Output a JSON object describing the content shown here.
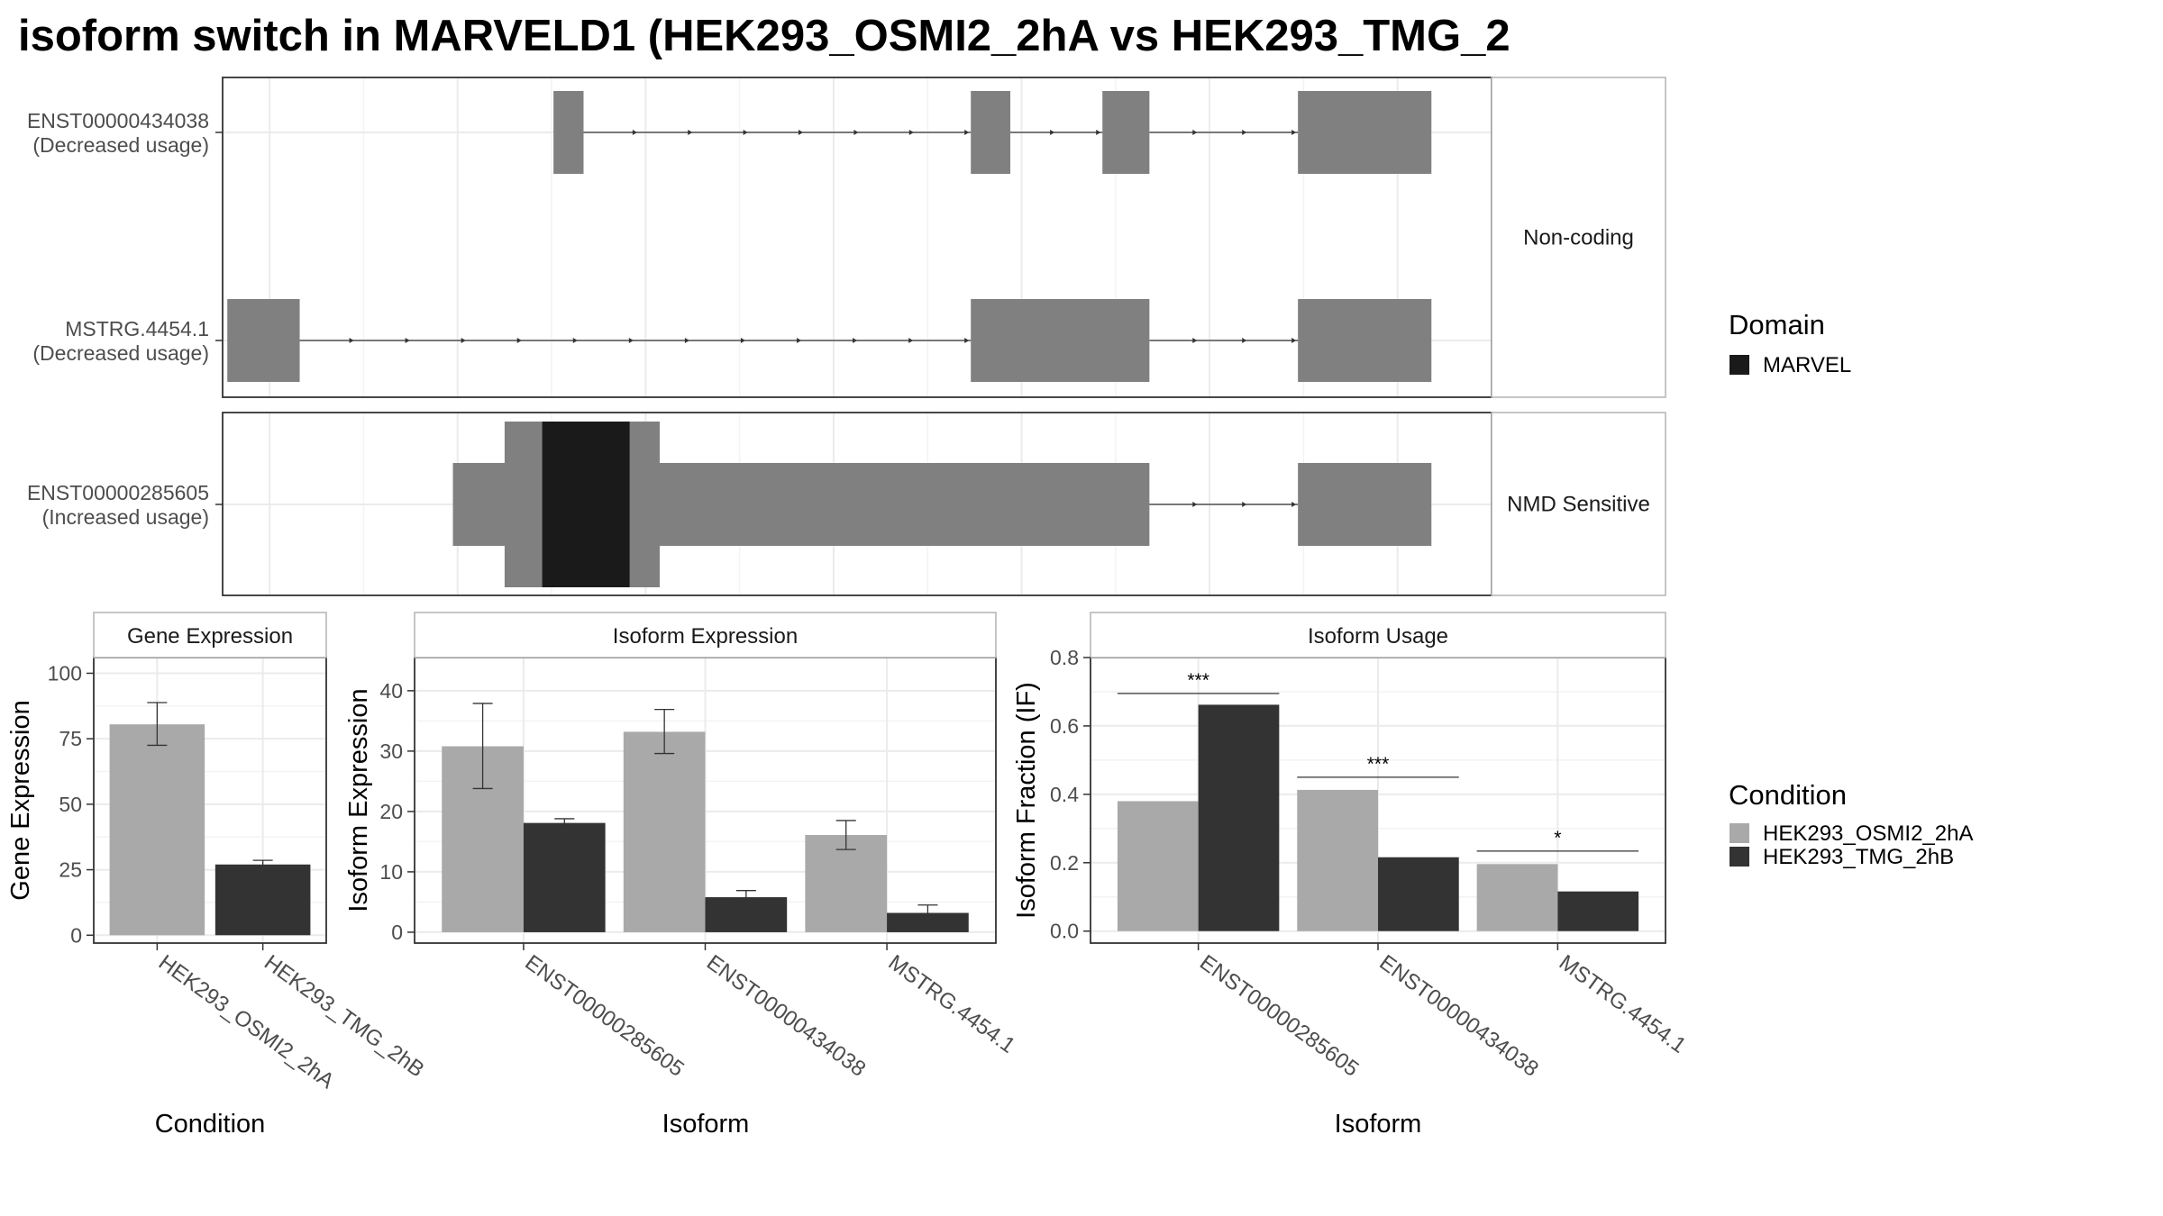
{
  "title": "isoform switch in MARVELD1 (HEK293_OSMI2_2hA vs HEK293_TMG_2",
  "colors": {
    "exon": "#808080",
    "domain": "#1a1a1a",
    "cond_a": "#a9a9a9",
    "cond_b": "#333333",
    "grid": "#ebebeb",
    "panel_border": "#333333",
    "strip_border": "#b3b3b3"
  },
  "structure": {
    "facets": [
      {
        "label": "Non-coding",
        "transcripts": [
          {
            "id": "ENST00000434038",
            "usage": "(Decreased usage)",
            "exons": [
              [
                3.52,
                3.84
              ],
              [
                7.96,
                8.38
              ],
              [
                9.36,
                9.86
              ],
              [
                11.44,
                12.86
              ]
            ],
            "cds": [],
            "domains": []
          },
          {
            "id": "MSTRG.4454.1",
            "usage": "(Decreased usage)",
            "exons": [
              [
                0.05,
                0.82
              ],
              [
                7.96,
                9.86
              ],
              [
                11.44,
                12.86
              ]
            ],
            "cds": [],
            "domains": []
          }
        ]
      },
      {
        "label": "NMD Sensitive",
        "transcripts": [
          {
            "id": "ENST00000285605",
            "usage": "(Increased usage)",
            "exons": [
              [
                2.45,
                9.86
              ],
              [
                11.44,
                12.86
              ]
            ],
            "cds": [
              [
                3.0,
                4.65
              ]
            ],
            "domains": [
              [
                3.4,
                4.33
              ]
            ]
          }
        ]
      }
    ],
    "domain_legend": {
      "title": "Domain",
      "items": [
        {
          "label": "MARVEL",
          "color": "#1a1a1a"
        }
      ]
    }
  },
  "chart_data": [
    {
      "type": "bar",
      "title": "Gene Expression",
      "xlabel": "Condition",
      "ylabel": "Gene Expression",
      "categories": [
        "HEK293_OSMI2_2hA",
        "HEK293_TMG_2hB"
      ],
      "series": [
        {
          "name": "HEK293_OSMI2_2hA",
          "values": [
            80.5,
            null
          ],
          "errors": [
            [
              72.5,
              88.8
            ],
            null
          ]
        },
        {
          "name": "HEK293_TMG_2hB",
          "values": [
            null,
            27
          ],
          "errors": [
            null,
            [
              25.8,
              28.6
            ]
          ]
        }
      ],
      "ylim": [
        -3,
        106
      ],
      "yticks": [
        0,
        25,
        50,
        75,
        100
      ]
    },
    {
      "type": "bar",
      "title": "Isoform Expression",
      "xlabel": "Isoform",
      "ylabel": "Isoform Expression",
      "categories": [
        "ENST00000285605",
        "ENST00000434038",
        "MSTRG.4454.1"
      ],
      "series": [
        {
          "name": "HEK293_OSMI2_2hA",
          "values": [
            30.8,
            33.2,
            16.1
          ],
          "errors": [
            [
              23.8,
              37.9
            ],
            [
              29.6,
              36.9
            ],
            [
              13.7,
              18.5
            ]
          ]
        },
        {
          "name": "HEK293_TMG_2hB",
          "values": [
            18.1,
            5.8,
            3.2
          ],
          "errors": [
            [
              17.4,
              18.8
            ],
            [
              5.0,
              6.9
            ],
            [
              2.2,
              4.5
            ]
          ]
        }
      ],
      "ylim": [
        -1.8,
        45.5
      ],
      "yticks": [
        0,
        10,
        20,
        30,
        40
      ]
    },
    {
      "type": "bar",
      "title": "Isoform Usage",
      "xlabel": "Isoform",
      "ylabel": "Isoform Fraction (IF)",
      "categories": [
        "ENST00000285605",
        "ENST00000434038",
        "MSTRG.4454.1"
      ],
      "series": [
        {
          "name": "HEK293_OSMI2_2hA",
          "values": [
            0.38,
            0.413,
            0.196
          ]
        },
        {
          "name": "HEK293_TMG_2hB",
          "values": [
            0.662,
            0.216,
            0.116
          ]
        }
      ],
      "significance": [
        {
          "label": "***",
          "y": 0.695
        },
        {
          "label": "***",
          "y": 0.45
        },
        {
          "label": "*",
          "y": 0.234
        }
      ],
      "ylim": [
        -0.035,
        0.8
      ],
      "yticks": [
        0.0,
        0.2,
        0.4,
        0.6,
        0.8
      ]
    }
  ],
  "condition_legend": {
    "title": "Condition",
    "items": [
      {
        "label": "HEK293_OSMI2_2hA",
        "color": "#a9a9a9"
      },
      {
        "label": "HEK293_TMG_2hB",
        "color": "#333333"
      }
    ]
  }
}
